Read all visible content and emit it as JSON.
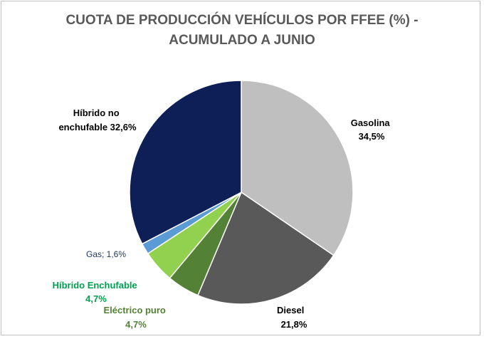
{
  "chart_data": {
    "type": "pie",
    "title_line1": "CUOTA DE PRODUCCIÓN VEHÍCULOS POR FFEE (%)  -",
    "title_line2": "ACUMULADO A JUNIO",
    "slices": [
      {
        "key": "gasolina",
        "name": "Gasolina",
        "value": 34.5,
        "value_label": "34,5%",
        "color": "#bfbfbf",
        "label_color": "#000000"
      },
      {
        "key": "diesel",
        "name": "Diesel",
        "value": 21.8,
        "value_label": "21,8%",
        "color": "#595959",
        "label_color": "#000000"
      },
      {
        "key": "electrico",
        "name": "Eléctrico puro",
        "value": 4.7,
        "value_label": "4,7%",
        "color": "#538135",
        "label_color": "#548235"
      },
      {
        "key": "hibrido-enchufable",
        "name": "Híbrido Enchufable",
        "value": 4.7,
        "value_label": "4,7%",
        "color": "#92d050",
        "label_color": "#00a050"
      },
      {
        "key": "gas",
        "name": "Gas",
        "value": 1.6,
        "value_label": "1,6%",
        "color": "#5b9bd5",
        "label_color": "#1f3864"
      },
      {
        "key": "hibrido-no-enchufable",
        "name": "Híbrido no enchufable",
        "value": 32.6,
        "value_label": "32,6%",
        "color": "#0d1f56",
        "label_color": "#000000"
      }
    ],
    "labels": {
      "gasolina": [
        "Gasolina",
        "34,5%"
      ],
      "diesel": [
        "Diesel",
        "21,8%"
      ],
      "electrico": [
        "Eléctrico puro",
        "4,7%"
      ],
      "hibrido_enchufable": [
        "Híbrido Enchufable",
        "4,7%"
      ],
      "gas": [
        "Gas; 1,6%"
      ],
      "hibrido_no_enchufable": [
        "Híbrido no",
        "enchufable 32,6%"
      ]
    }
  }
}
